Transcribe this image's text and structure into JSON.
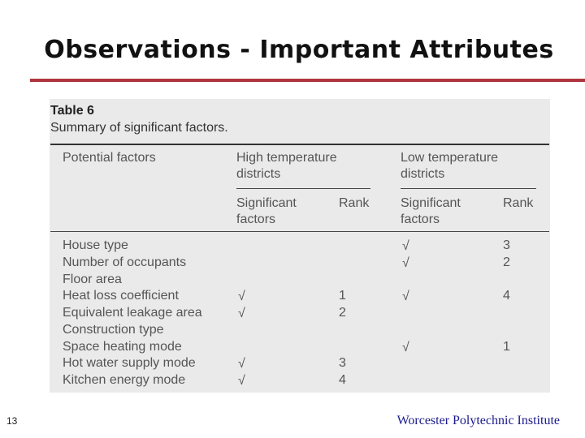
{
  "slide": {
    "title": "Observations - Important Attributes",
    "page_number": "13",
    "institution": "Worcester Polytechnic Institute",
    "accent_color": "#b0353f"
  },
  "table": {
    "caption_label": "Table 6",
    "caption_text": "Summary of significant factors.",
    "headers": {
      "factor": "Potential factors",
      "group_high_line1": "High temperature",
      "group_high_line2": "districts",
      "group_low_line1": "Low temperature",
      "group_low_line2": "districts",
      "significant_line1": "Significant",
      "significant_line2": "factors",
      "rank": "Rank"
    },
    "check_symbol": "√",
    "rows": [
      {
        "factor": "House type",
        "high_check": "",
        "high_rank": "",
        "low_check": "√",
        "low_rank": "3"
      },
      {
        "factor": "Number of occupants",
        "high_check": "",
        "high_rank": "",
        "low_check": "√",
        "low_rank": "2"
      },
      {
        "factor": "Floor area",
        "high_check": "",
        "high_rank": "",
        "low_check": "",
        "low_rank": ""
      },
      {
        "factor": "Heat loss coefficient",
        "high_check": "√",
        "high_rank": "1",
        "low_check": "√",
        "low_rank": "4"
      },
      {
        "factor": "Equivalent leakage area",
        "high_check": "√",
        "high_rank": "2",
        "low_check": "",
        "low_rank": ""
      },
      {
        "factor": "Construction type",
        "high_check": "",
        "high_rank": "",
        "low_check": "",
        "low_rank": ""
      },
      {
        "factor": "Space heating mode",
        "high_check": "",
        "high_rank": "",
        "low_check": "√",
        "low_rank": "1"
      },
      {
        "factor": "Hot water supply mode",
        "high_check": "√",
        "high_rank": "3",
        "low_check": "",
        "low_rank": ""
      },
      {
        "factor": "Kitchen energy mode",
        "high_check": "√",
        "high_rank": "4",
        "low_check": "",
        "low_rank": ""
      }
    ]
  }
}
